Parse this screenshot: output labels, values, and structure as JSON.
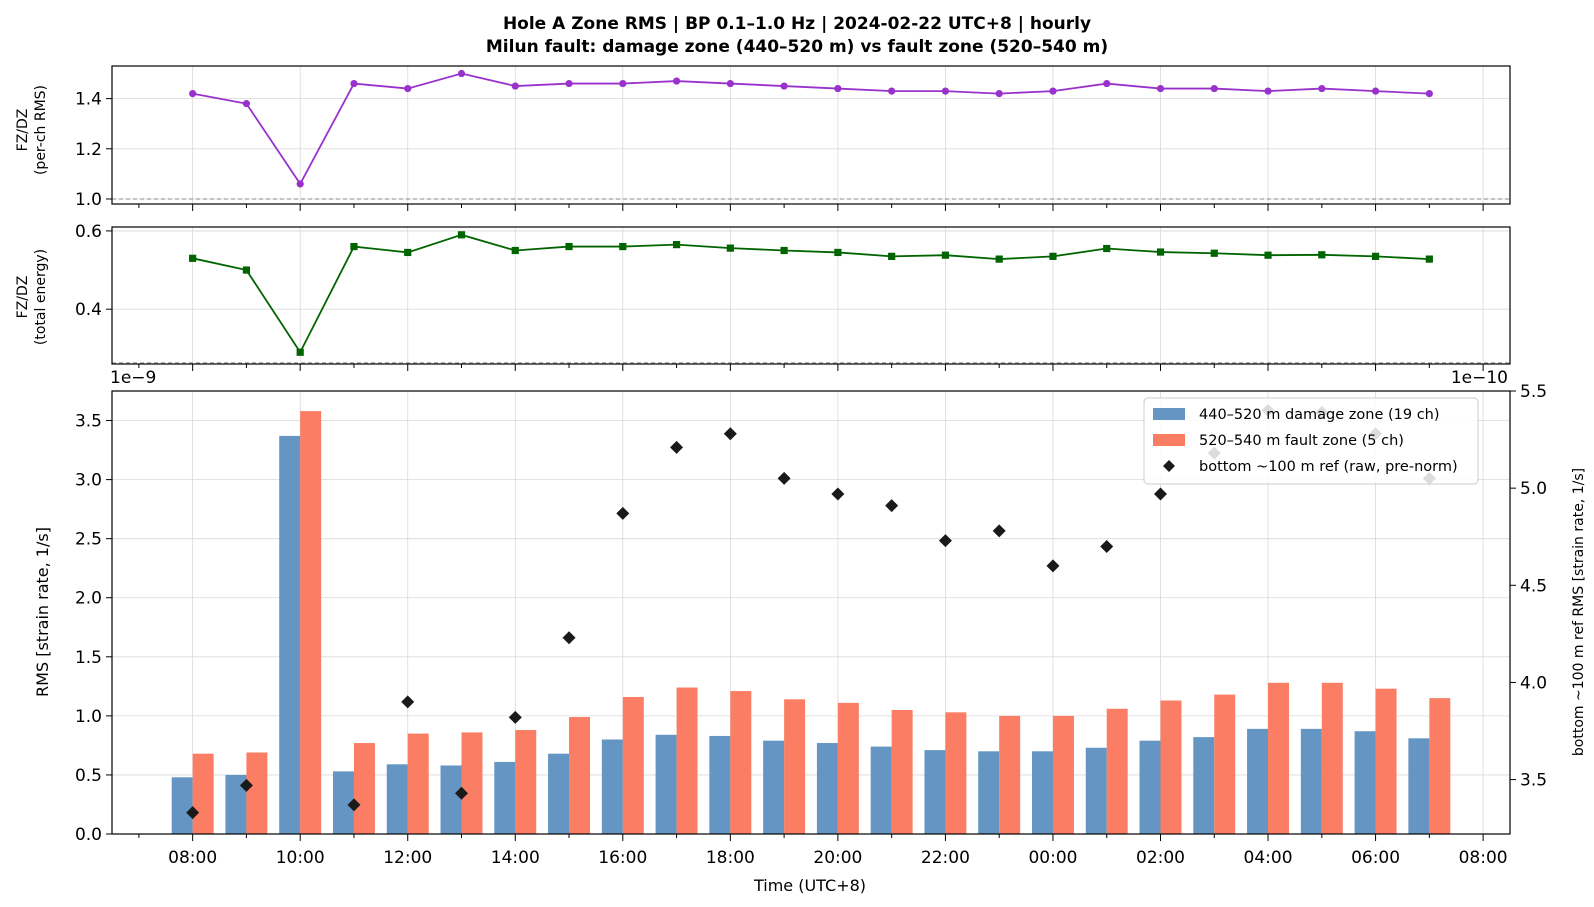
{
  "figure": {
    "title_line1": "Hole A Zone RMS  |  BP 0.1–1.0 Hz  |  2024-02-22 UTC+8  |  hourly",
    "title_line2": "Milun fault: damage zone (440–520 m) vs fault zone (520–540 m)"
  },
  "chart_data": [
    {
      "type": "line",
      "name": "ratio-per-channel",
      "ylabel_line1": "FZ/DZ",
      "ylabel_line2": "(per-ch RMS)",
      "x_hours": [
        8,
        9,
        10,
        11,
        12,
        13,
        14,
        15,
        16,
        17,
        18,
        19,
        20,
        21,
        22,
        23,
        24,
        25,
        26,
        27,
        28,
        29,
        30,
        31
      ],
      "values": [
        1.42,
        1.38,
        1.06,
        1.46,
        1.44,
        1.5,
        1.45,
        1.46,
        1.46,
        1.47,
        1.46,
        1.45,
        1.44,
        1.43,
        1.43,
        1.42,
        1.43,
        1.46,
        1.44,
        1.44,
        1.43,
        1.44,
        1.43,
        1.42
      ],
      "ylim": [
        0.98,
        1.53
      ],
      "yticks": [
        1.0,
        1.2,
        1.4
      ],
      "ytick_labels": [
        "1.0",
        "1.2",
        "1.4"
      ],
      "reference_line": 1.0,
      "color": "#9932CC",
      "marker": "circle"
    },
    {
      "type": "line",
      "name": "ratio-total-energy",
      "ylabel_line1": "FZ/DZ",
      "ylabel_line2": "(total energy)",
      "x_hours": [
        8,
        9,
        10,
        11,
        12,
        13,
        14,
        15,
        16,
        17,
        18,
        19,
        20,
        21,
        22,
        23,
        24,
        25,
        26,
        27,
        28,
        29,
        30,
        31
      ],
      "values": [
        0.53,
        0.5,
        0.29,
        0.56,
        0.545,
        0.59,
        0.55,
        0.56,
        0.56,
        0.565,
        0.556,
        0.55,
        0.545,
        0.535,
        0.538,
        0.528,
        0.535,
        0.555,
        0.546,
        0.543,
        0.538,
        0.539,
        0.535,
        0.528
      ],
      "ylim": [
        0.26,
        0.61
      ],
      "yticks": [
        0.4,
        0.6
      ],
      "ytick_labels": [
        "0.4",
        "0.6"
      ],
      "reference_line": 0.263,
      "color": "#006400",
      "marker": "square"
    },
    {
      "type": "bar",
      "name": "zone-rms",
      "xlabel": "Time (UTC+8)",
      "ylabel": "RMS  [strain rate, 1/s]",
      "ylabel_right": "bottom ~100 m ref RMS  [strain rate, 1/s]",
      "offset_left": "1e−9",
      "offset_right": "1e−10",
      "x_hours": [
        8,
        9,
        10,
        11,
        12,
        13,
        14,
        15,
        16,
        17,
        18,
        19,
        20,
        21,
        22,
        23,
        24,
        25,
        26,
        27,
        28,
        29,
        30,
        31
      ],
      "xlim": [
        6.5,
        32.5
      ],
      "xticks": [
        8,
        10,
        12,
        14,
        16,
        18,
        20,
        22,
        24,
        26,
        28,
        30,
        32
      ],
      "xtick_labels": [
        "08:00",
        "10:00",
        "12:00",
        "14:00",
        "16:00",
        "18:00",
        "20:00",
        "22:00",
        "00:00",
        "02:00",
        "04:00",
        "06:00",
        "08:00"
      ],
      "ylim": [
        0,
        3.75
      ],
      "yticks": [
        0,
        0.5,
        1.0,
        1.5,
        2.0,
        2.5,
        3.0,
        3.5
      ],
      "ytick_labels": [
        "0.0",
        "0.5",
        "1.0",
        "1.5",
        "2.0",
        "2.5",
        "3.0",
        "3.5"
      ],
      "ylim_right": [
        3.22,
        5.5
      ],
      "yticks_right": [
        3.5,
        4.0,
        4.5,
        5.0,
        5.5
      ],
      "ytick_labels_right": [
        "3.5",
        "4.0",
        "4.5",
        "5.0",
        "5.5"
      ],
      "series": [
        {
          "name": "440–520 m  damage zone (19 ch)",
          "color": "#6495C3",
          "values": [
            0.48,
            0.5,
            3.37,
            0.53,
            0.59,
            0.58,
            0.61,
            0.68,
            0.8,
            0.84,
            0.83,
            0.79,
            0.77,
            0.74,
            0.71,
            0.7,
            0.7,
            0.73,
            0.79,
            0.82,
            0.89,
            0.89,
            0.87,
            0.81
          ]
        },
        {
          "name": "520–540 m  fault zone (5 ch)",
          "color": "#FA7D64",
          "values": [
            0.68,
            0.69,
            3.58,
            0.77,
            0.85,
            0.86,
            0.88,
            0.99,
            1.16,
            1.24,
            1.21,
            1.14,
            1.11,
            1.05,
            1.03,
            1.0,
            1.0,
            1.06,
            1.13,
            1.18,
            1.28,
            1.28,
            1.23,
            1.15
          ]
        },
        {
          "name": "bottom ~100 m ref (raw, pre-norm)",
          "color": "#1a1a1a",
          "axis": "right",
          "marker": "diamond",
          "values": [
            3.33,
            3.47,
            null,
            3.37,
            3.9,
            3.43,
            3.82,
            4.23,
            4.87,
            5.21,
            5.28,
            5.05,
            4.97,
            4.91,
            4.73,
            4.78,
            4.6,
            4.7,
            4.97,
            5.18,
            5.4,
            5.39,
            5.28,
            5.05
          ]
        }
      ],
      "legend_position": "top-right"
    }
  ]
}
